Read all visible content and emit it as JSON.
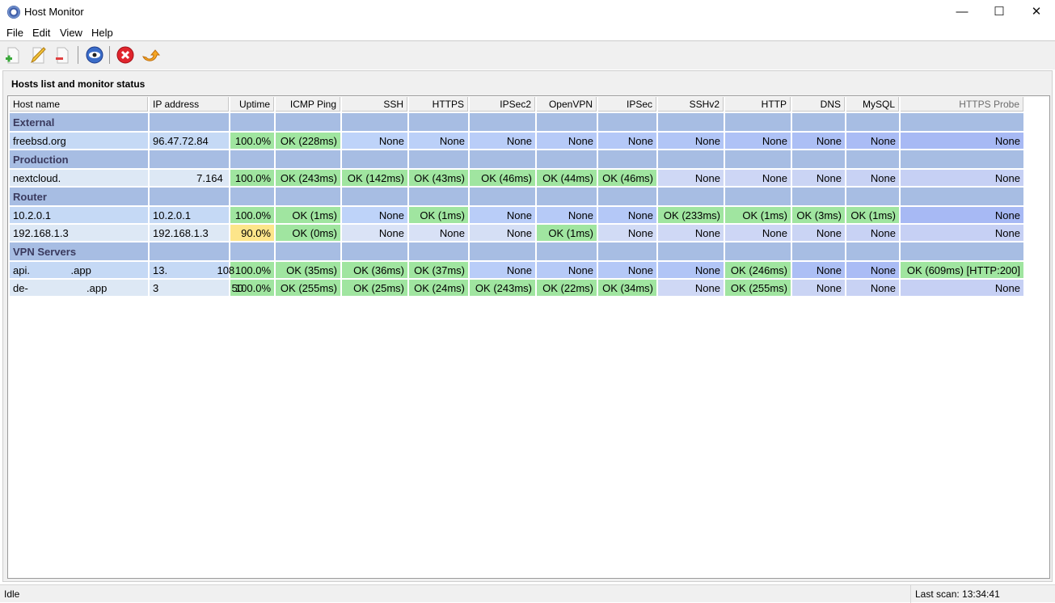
{
  "window": {
    "title": "Host Monitor",
    "minimize": "—",
    "maximize": "☐",
    "close": "✕"
  },
  "menu": [
    "File",
    "Edit",
    "View",
    "Help"
  ],
  "toolbar": [
    {
      "icon": "add-host-icon"
    },
    {
      "icon": "edit-host-icon"
    },
    {
      "icon": "remove-host-icon"
    },
    {
      "icon": "monitor-eye-icon"
    },
    {
      "icon": "stop-icon"
    },
    {
      "icon": "refresh-icon"
    }
  ],
  "panel": {
    "title": "Hosts list and monitor status"
  },
  "columns": [
    "Host name",
    "IP address",
    "Uptime",
    "ICMP Ping",
    "SSH",
    "HTTPS",
    "IPSec2",
    "OpenVPN",
    "IPSec",
    "SSHv2",
    "HTTP",
    "DNS",
    "MySQL",
    "HTTPS Probe"
  ],
  "groups": [
    {
      "name": "External",
      "rows": [
        [
          "freebsd.org",
          "96.47.72.84",
          "100.0%",
          "OK (228ms)",
          "None",
          "None",
          "None",
          "None",
          "None",
          "None",
          "None",
          "None",
          "None",
          "None"
        ]
      ]
    },
    {
      "name": "Production",
      "rows": [
        [
          "nextcloud.",
          "               7.164",
          "100.0%",
          "OK (243ms)",
          "OK (142ms)",
          "OK (43ms)",
          "OK (46ms)",
          "OK (44ms)",
          "OK (46ms)",
          "None",
          "None",
          "None",
          "None",
          "None"
        ]
      ]
    },
    {
      "name": "Router",
      "rows": [
        [
          "10.2.0.1",
          "10.2.0.1",
          "100.0%",
          "OK (1ms)",
          "None",
          "OK (1ms)",
          "None",
          "None",
          "None",
          "OK (233ms)",
          "OK (1ms)",
          "OK (3ms)",
          "OK (1ms)",
          "None"
        ],
        [
          "192.168.1.3",
          "192.168.1.3",
          "90.0%",
          "OK (0ms)",
          "None",
          "None",
          "None",
          "OK (1ms)",
          "None",
          "None",
          "None",
          "None",
          "None",
          "None"
        ]
      ]
    },
    {
      "name": "VPN Servers",
      "rows": [
        [
          "api.              .app",
          "13.                 108",
          "100.0%",
          "OK (35ms)",
          "OK (36ms)",
          "OK (37ms)",
          "None",
          "None",
          "None",
          "None",
          "OK (246ms)",
          "None",
          "None",
          "OK (609ms) [HTTP:200]"
        ],
        [
          "de-                    .app",
          "3                         50",
          "100.0%",
          "OK (255ms)",
          "OK (25ms)",
          "OK (24ms)",
          "OK (243ms)",
          "OK (22ms)",
          "OK (34ms)",
          "None",
          "OK (255ms)",
          "None",
          "None",
          "None"
        ]
      ]
    }
  ],
  "colors": {
    "group": "#a7bde3",
    "ok": "#a0e5a0",
    "warn": "#fde58a"
  },
  "status": {
    "left": "Idle",
    "right": "Last scan: 13:34:41"
  }
}
